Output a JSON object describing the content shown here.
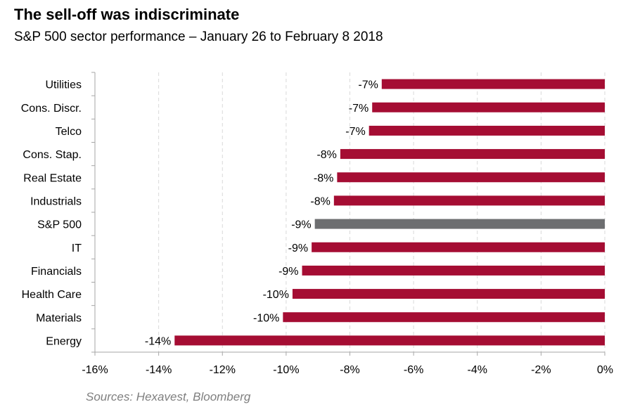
{
  "header": {
    "title": "The sell-off was indiscriminate",
    "subtitle": "S&P 500 sector performance – January 26 to February 8 2018"
  },
  "footer": {
    "source": "Sources: Hexavest, Bloomberg"
  },
  "chart_data": {
    "type": "bar",
    "orientation": "horizontal",
    "title": "The sell-off was indiscriminate",
    "subtitle": "S&P 500 sector performance – January 26 to February 8 2018",
    "xlabel": "",
    "ylabel": "",
    "categories": [
      "Utilities",
      "Cons. Discr.",
      "Telco",
      "Cons. Stap.",
      "Real Estate",
      "Industrials",
      "S&P 500",
      "IT",
      "Financials",
      "Health Care",
      "Materials",
      "Energy"
    ],
    "values": [
      -7.0,
      -7.3,
      -7.4,
      -8.3,
      -8.4,
      -8.5,
      -9.1,
      -9.2,
      -9.5,
      -9.8,
      -10.1,
      -13.5
    ],
    "value_labels": [
      "-7%",
      "-7%",
      "-7%",
      "-8%",
      "-8%",
      "-8%",
      "-9%",
      "-9%",
      "-9%",
      "-10%",
      "-10%",
      "-14%"
    ],
    "bar_colors": [
      "#a50d33",
      "#a50d33",
      "#a50d33",
      "#a50d33",
      "#a50d33",
      "#a50d33",
      "#6d6e70",
      "#a50d33",
      "#a50d33",
      "#a50d33",
      "#a50d33",
      "#a50d33"
    ],
    "xlim": [
      -16,
      0
    ],
    "xticks": [
      -16,
      -14,
      -12,
      -10,
      -8,
      -6,
      -4,
      -2,
      0
    ],
    "xtick_labels": [
      "-16%",
      "-14%",
      "-12%",
      "-10%",
      "-8%",
      "-6%",
      "-4%",
      "-2%",
      "0%"
    ],
    "grid": true,
    "legend": "none",
    "colors": {
      "sector": "#a50d33",
      "index": "#6d6e70",
      "grid": "#d9d9d9",
      "axis": "#a6a6a6"
    }
  }
}
